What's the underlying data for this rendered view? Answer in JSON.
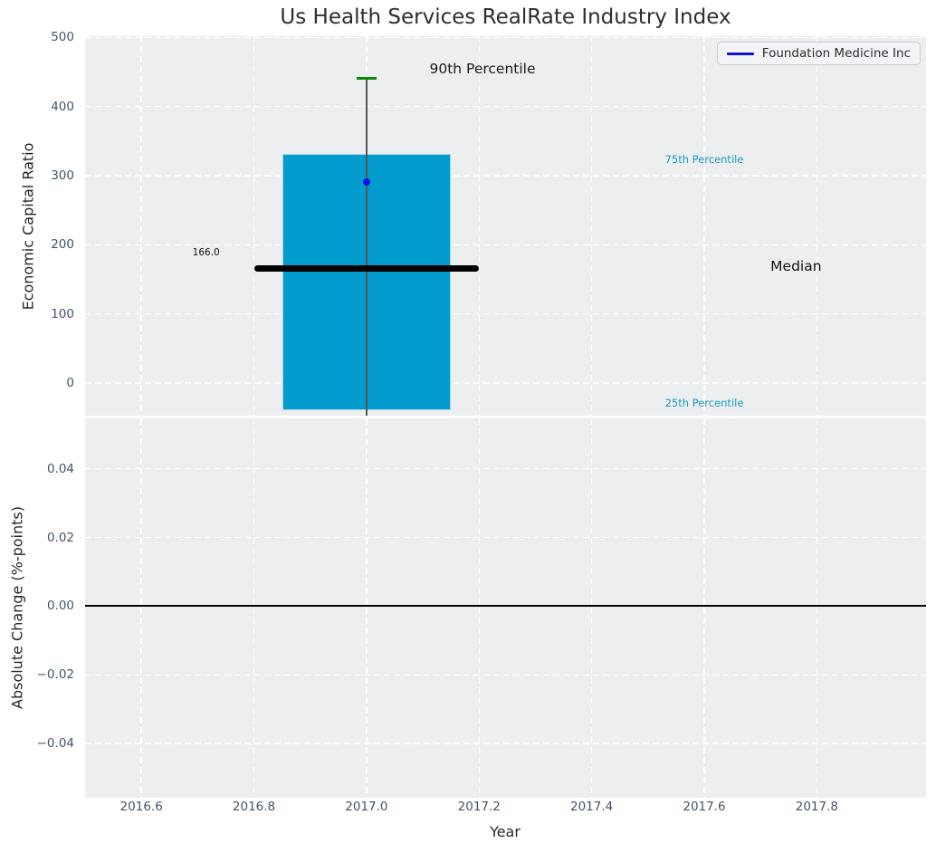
{
  "colors": {
    "figure_bg": "#FFFFFF",
    "axes_bg": "#ECEEF0",
    "grid": "#FFFFFF",
    "bar_fill": "#019CCD",
    "bar_edge": "#A3D8EA",
    "median_line": "#000000",
    "company_marker": "#0F0FE8",
    "legend_line": "#1111DD",
    "legend_bg": "#F3F4F8",
    "legend_border": "#CACACF",
    "legend_text": "#2D2D2D",
    "whisker_line": "#555555",
    "whisker_cap": "#078A07",
    "percentile_label": "#1B9AC6",
    "tick_label": "#43536B",
    "title": "#2E2E2E",
    "axis_label": "#262626",
    "zero_line": "#000000"
  },
  "chart_data": [
    {
      "type": "bar",
      "title": "Us Health Services RealRate Industry Index",
      "ylabel": "Economic Capital Ratio",
      "ylim": [
        -47.2,
        501.8
      ],
      "xlim": [
        2016.5,
        2017.994
      ],
      "grid": true,
      "yticks": [
        {
          "label": "0",
          "value": 0
        },
        {
          "label": "100",
          "value": 100
        },
        {
          "label": "200",
          "value": 200
        },
        {
          "label": "300",
          "value": 300
        },
        {
          "label": "400",
          "value": 400
        },
        {
          "label": "500",
          "value": 500
        }
      ],
      "xticks": [
        {
          "label": "2016.6",
          "value": 2016.6
        },
        {
          "label": "2016.8",
          "value": 2016.8
        },
        {
          "label": "2017.0",
          "value": 2017.0
        },
        {
          "label": "2017.2",
          "value": 2017.2
        },
        {
          "label": "2017.4",
          "value": 2017.4
        },
        {
          "label": "2017.6",
          "value": 2017.6
        },
        {
          "label": "2017.8",
          "value": 2017.8
        }
      ],
      "industry_distribution": {
        "x": 2017.0,
        "bar_width_years": 0.3,
        "percentile_25": -40,
        "median": 166,
        "percentile_75": 332,
        "percentile_90": 441
      },
      "median_line": {
        "value": 166,
        "x_start": 2016.8,
        "x_end": 2017.2,
        "label": "166.0"
      },
      "series": [
        {
          "name": "Foundation Medicine Inc",
          "marker": "circle",
          "points": [
            {
              "x": 2017.0,
              "y": 291
            }
          ]
        }
      ],
      "legend": {
        "position": "upper right",
        "entries": [
          {
            "label": "Foundation Medicine Inc",
            "swatch": "blue-line"
          }
        ]
      },
      "annotations": [
        {
          "text": "90th Percentile",
          "x": 2017.206,
          "y": 455,
          "color": "#1A1A1A",
          "size": 15.5
        },
        {
          "text": "75th Percentile",
          "x": 2017.6,
          "y": 324,
          "color": "#1B9AC6",
          "size": 11.5
        },
        {
          "text": "Median",
          "x": 2017.763,
          "y": 169,
          "color": "#111111",
          "size": 15.5
        },
        {
          "text": "25th Percentile",
          "x": 2017.6,
          "y": -29,
          "color": "#1B9AC6",
          "size": 11.5
        },
        {
          "text": "166.0",
          "x": 2016.715,
          "y": 188,
          "color": "#111111",
          "size": 10.5
        }
      ]
    },
    {
      "type": "line",
      "ylabel": "Absolute Change (%-points)",
      "xlabel": "Year",
      "ylim": [
        -0.0558,
        0.0547
      ],
      "xlim": [
        2016.5,
        2017.994
      ],
      "grid": true,
      "zero_line": 0.0,
      "yticks": [
        {
          "label": "0.04",
          "value": 0.04
        },
        {
          "label": "0.02",
          "value": 0.02
        },
        {
          "label": "0.00",
          "value": 0.0
        },
        {
          "label": "−0.02",
          "value": -0.02
        },
        {
          "label": "−0.04",
          "value": -0.04
        }
      ],
      "xticks": [
        {
          "label": "2016.6",
          "value": 2016.6
        },
        {
          "label": "2016.8",
          "value": 2016.8
        },
        {
          "label": "2017.0",
          "value": 2017.0
        },
        {
          "label": "2017.2",
          "value": 2017.2
        },
        {
          "label": "2017.4",
          "value": 2017.4
        },
        {
          "label": "2017.6",
          "value": 2017.6
        },
        {
          "label": "2017.8",
          "value": 2017.8
        }
      ],
      "series": []
    }
  ]
}
